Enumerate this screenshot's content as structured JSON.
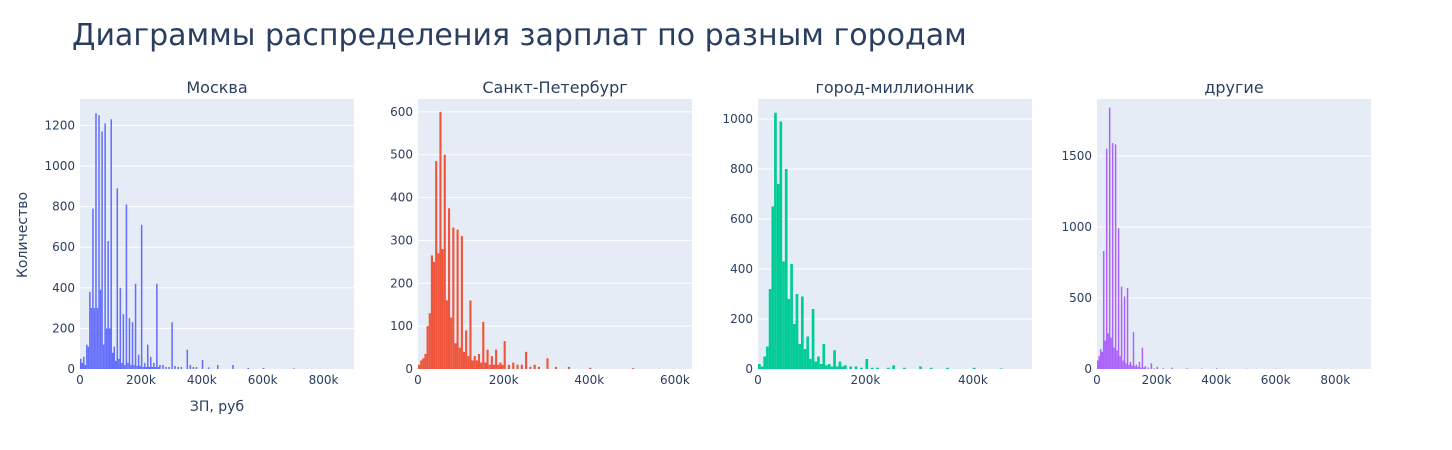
{
  "title": "Диаграммы распределения зарплат по разным городам",
  "y_axis_title": "Количество",
  "x_axis_title": "ЗП, руб",
  "chart_data": [
    {
      "type": "bar",
      "subtitle": "Москва",
      "color": "#636efa",
      "xlim": [
        0,
        900000
      ],
      "ylim": [
        0,
        1330
      ],
      "xticks": [
        {
          "v": 0,
          "label": "0"
        },
        {
          "v": 200000,
          "label": "200k"
        },
        {
          "v": 400000,
          "label": "400k"
        },
        {
          "v": 600000,
          "label": "600k"
        },
        {
          "v": 800000,
          "label": "800k"
        }
      ],
      "yticks": [
        {
          "v": 0,
          "label": "0"
        },
        {
          "v": 200,
          "label": "200"
        },
        {
          "v": 400,
          "label": "400"
        },
        {
          "v": 600,
          "label": "600"
        },
        {
          "v": 800,
          "label": "800"
        },
        {
          "v": 1000,
          "label": "1000"
        },
        {
          "v": 1200,
          "label": "1200"
        }
      ],
      "bin_width": 5000,
      "bins": [
        [
          0,
          50
        ],
        [
          5000,
          30
        ],
        [
          10000,
          60
        ],
        [
          15000,
          20
        ],
        [
          20000,
          120
        ],
        [
          25000,
          110
        ],
        [
          30000,
          380
        ],
        [
          35000,
          300
        ],
        [
          40000,
          790
        ],
        [
          45000,
          300
        ],
        [
          50000,
          1260
        ],
        [
          55000,
          300
        ],
        [
          60000,
          1250
        ],
        [
          65000,
          390
        ],
        [
          70000,
          1170
        ],
        [
          75000,
          120
        ],
        [
          80000,
          1210
        ],
        [
          85000,
          200
        ],
        [
          90000,
          630
        ],
        [
          95000,
          200
        ],
        [
          100000,
          1230
        ],
        [
          105000,
          80
        ],
        [
          110000,
          110
        ],
        [
          115000,
          40
        ],
        [
          120000,
          890
        ],
        [
          125000,
          50
        ],
        [
          130000,
          400
        ],
        [
          135000,
          30
        ],
        [
          140000,
          270
        ],
        [
          145000,
          20
        ],
        [
          150000,
          810
        ],
        [
          155000,
          30
        ],
        [
          160000,
          250
        ],
        [
          165000,
          20
        ],
        [
          170000,
          230
        ],
        [
          175000,
          20
        ],
        [
          180000,
          420
        ],
        [
          185000,
          15
        ],
        [
          190000,
          70
        ],
        [
          195000,
          15
        ],
        [
          200000,
          710
        ],
        [
          205000,
          10
        ],
        [
          210000,
          30
        ],
        [
          215000,
          10
        ],
        [
          220000,
          120
        ],
        [
          225000,
          10
        ],
        [
          230000,
          60
        ],
        [
          235000,
          10
        ],
        [
          240000,
          30
        ],
        [
          245000,
          10
        ],
        [
          250000,
          420
        ],
        [
          255000,
          10
        ],
        [
          260000,
          20
        ],
        [
          270000,
          20
        ],
        [
          280000,
          10
        ],
        [
          290000,
          10
        ],
        [
          300000,
          230
        ],
        [
          310000,
          15
        ],
        [
          320000,
          10
        ],
        [
          330000,
          10
        ],
        [
          350000,
          95
        ],
        [
          360000,
          20
        ],
        [
          370000,
          10
        ],
        [
          380000,
          10
        ],
        [
          400000,
          45
        ],
        [
          420000,
          8
        ],
        [
          450000,
          20
        ],
        [
          500000,
          20
        ],
        [
          550000,
          5
        ],
        [
          600000,
          5
        ],
        [
          700000,
          3
        ]
      ]
    },
    {
      "type": "bar",
      "subtitle": "Санкт-Петербург",
      "color": "#ef553b",
      "xlim": [
        0,
        640000
      ],
      "ylim": [
        0,
        630
      ],
      "xticks": [
        {
          "v": 0,
          "label": "0"
        },
        {
          "v": 200000,
          "label": "200k"
        },
        {
          "v": 400000,
          "label": "400k"
        },
        {
          "v": 600000,
          "label": "600k"
        }
      ],
      "yticks": [
        {
          "v": 0,
          "label": "0"
        },
        {
          "v": 100,
          "label": "100"
        },
        {
          "v": 200,
          "label": "200"
        },
        {
          "v": 300,
          "label": "300"
        },
        {
          "v": 400,
          "label": "400"
        },
        {
          "v": 500,
          "label": "500"
        },
        {
          "v": 600,
          "label": "600"
        }
      ],
      "bin_width": 5000,
      "bins": [
        [
          0,
          10
        ],
        [
          5000,
          20
        ],
        [
          10000,
          25
        ],
        [
          15000,
          35
        ],
        [
          20000,
          100
        ],
        [
          25000,
          130
        ],
        [
          30000,
          265
        ],
        [
          35000,
          250
        ],
        [
          40000,
          485
        ],
        [
          45000,
          270
        ],
        [
          50000,
          600
        ],
        [
          55000,
          280
        ],
        [
          60000,
          500
        ],
        [
          65000,
          160
        ],
        [
          70000,
          375
        ],
        [
          75000,
          120
        ],
        [
          80000,
          330
        ],
        [
          85000,
          60
        ],
        [
          90000,
          325
        ],
        [
          95000,
          50
        ],
        [
          100000,
          310
        ],
        [
          105000,
          40
        ],
        [
          110000,
          90
        ],
        [
          115000,
          30
        ],
        [
          120000,
          160
        ],
        [
          125000,
          20
        ],
        [
          130000,
          30
        ],
        [
          135000,
          20
        ],
        [
          140000,
          35
        ],
        [
          145000,
          15
        ],
        [
          150000,
          110
        ],
        [
          155000,
          15
        ],
        [
          160000,
          45
        ],
        [
          165000,
          10
        ],
        [
          170000,
          30
        ],
        [
          175000,
          10
        ],
        [
          180000,
          45
        ],
        [
          185000,
          10
        ],
        [
          190000,
          15
        ],
        [
          195000,
          10
        ],
        [
          200000,
          65
        ],
        [
          210000,
          10
        ],
        [
          220000,
          15
        ],
        [
          230000,
          10
        ],
        [
          240000,
          10
        ],
        [
          250000,
          40
        ],
        [
          260000,
          5
        ],
        [
          270000,
          10
        ],
        [
          280000,
          5
        ],
        [
          300000,
          25
        ],
        [
          320000,
          5
        ],
        [
          350000,
          5
        ],
        [
          400000,
          3
        ],
        [
          500000,
          2
        ]
      ]
    },
    {
      "type": "bar",
      "subtitle": "город-миллионник",
      "color": "#00cc96",
      "xlim": [
        0,
        510000
      ],
      "ylim": [
        0,
        1080
      ],
      "xticks": [
        {
          "v": 0,
          "label": "0"
        },
        {
          "v": 200000,
          "label": "200k"
        },
        {
          "v": 400000,
          "label": "400k"
        }
      ],
      "yticks": [
        {
          "v": 0,
          "label": "0"
        },
        {
          "v": 200,
          "label": "200"
        },
        {
          "v": 400,
          "label": "400"
        },
        {
          "v": 600,
          "label": "600"
        },
        {
          "v": 800,
          "label": "800"
        },
        {
          "v": 1000,
          "label": "1000"
        }
      ],
      "bin_width": 5000,
      "bins": [
        [
          0,
          20
        ],
        [
          5000,
          10
        ],
        [
          10000,
          50
        ],
        [
          15000,
          90
        ],
        [
          20000,
          320
        ],
        [
          25000,
          650
        ],
        [
          30000,
          1025
        ],
        [
          35000,
          740
        ],
        [
          40000,
          990
        ],
        [
          45000,
          430
        ],
        [
          50000,
          800
        ],
        [
          55000,
          280
        ],
        [
          60000,
          420
        ],
        [
          65000,
          180
        ],
        [
          70000,
          300
        ],
        [
          75000,
          100
        ],
        [
          80000,
          290
        ],
        [
          85000,
          80
        ],
        [
          90000,
          130
        ],
        [
          95000,
          40
        ],
        [
          100000,
          240
        ],
        [
          105000,
          30
        ],
        [
          110000,
          50
        ],
        [
          115000,
          20
        ],
        [
          120000,
          100
        ],
        [
          125000,
          15
        ],
        [
          130000,
          20
        ],
        [
          135000,
          10
        ],
        [
          140000,
          75
        ],
        [
          145000,
          10
        ],
        [
          150000,
          30
        ],
        [
          155000,
          10
        ],
        [
          160000,
          15
        ],
        [
          170000,
          10
        ],
        [
          180000,
          10
        ],
        [
          190000,
          5
        ],
        [
          200000,
          40
        ],
        [
          210000,
          5
        ],
        [
          220000,
          5
        ],
        [
          240000,
          5
        ],
        [
          250000,
          15
        ],
        [
          270000,
          5
        ],
        [
          300000,
          10
        ],
        [
          320000,
          5
        ],
        [
          350000,
          5
        ],
        [
          400000,
          5
        ],
        [
          450000,
          2
        ]
      ]
    },
    {
      "type": "bar",
      "subtitle": "другие",
      "color": "#ab63fa",
      "xlim": [
        0,
        920000
      ],
      "ylim": [
        0,
        1900
      ],
      "xticks": [
        {
          "v": 0,
          "label": "0"
        },
        {
          "v": 200000,
          "label": "200k"
        },
        {
          "v": 400000,
          "label": "400k"
        },
        {
          "v": 600000,
          "label": "600k"
        },
        {
          "v": 800000,
          "label": "800k"
        }
      ],
      "yticks": [
        {
          "v": 0,
          "label": "0"
        },
        {
          "v": 500,
          "label": "500"
        },
        {
          "v": 1000,
          "label": "1000"
        },
        {
          "v": 1500,
          "label": "1500"
        }
      ],
      "bin_width": 5000,
      "bins": [
        [
          0,
          60
        ],
        [
          5000,
          90
        ],
        [
          10000,
          140
        ],
        [
          15000,
          120
        ],
        [
          20000,
          830
        ],
        [
          25000,
          200
        ],
        [
          30000,
          1550
        ],
        [
          35000,
          250
        ],
        [
          40000,
          1840
        ],
        [
          45000,
          220
        ],
        [
          50000,
          1590
        ],
        [
          55000,
          150
        ],
        [
          60000,
          1580
        ],
        [
          65000,
          130
        ],
        [
          70000,
          990
        ],
        [
          75000,
          90
        ],
        [
          80000,
          580
        ],
        [
          85000,
          60
        ],
        [
          90000,
          510
        ],
        [
          95000,
          40
        ],
        [
          100000,
          570
        ],
        [
          105000,
          30
        ],
        [
          110000,
          50
        ],
        [
          115000,
          25
        ],
        [
          120000,
          260
        ],
        [
          125000,
          20
        ],
        [
          130000,
          30
        ],
        [
          135000,
          15
        ],
        [
          140000,
          50
        ],
        [
          145000,
          10
        ],
        [
          150000,
          150
        ],
        [
          155000,
          10
        ],
        [
          160000,
          20
        ],
        [
          170000,
          10
        ],
        [
          180000,
          40
        ],
        [
          190000,
          5
        ],
        [
          200000,
          15
        ],
        [
          220000,
          5
        ],
        [
          250000,
          10
        ],
        [
          300000,
          5
        ],
        [
          350000,
          3
        ],
        [
          400000,
          5
        ],
        [
          500000,
          2
        ],
        [
          600000,
          2
        ]
      ]
    }
  ]
}
